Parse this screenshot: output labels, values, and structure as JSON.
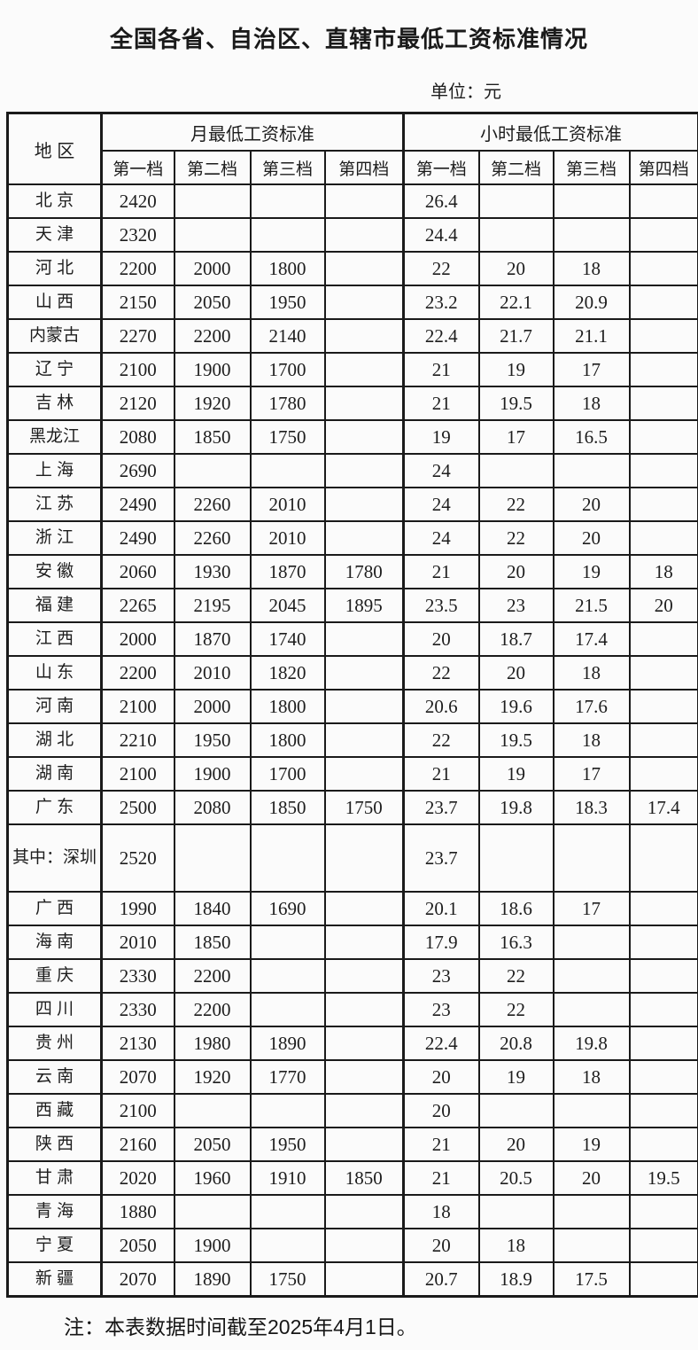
{
  "title": "全国各省、自治区、直辖市最低工资标准情况",
  "unit_label": "单位：元",
  "note": "注：本表数据时间截至2025年4月1日。",
  "table": {
    "region_header": "地 区",
    "month_group_header": "月最低工资标准",
    "hour_group_header": "小时最低工资标准",
    "tier_headers": [
      "第一档",
      "第二档",
      "第三档",
      "第四档"
    ],
    "rows": [
      {
        "region": "北 京",
        "month": [
          "2420",
          "",
          "",
          ""
        ],
        "hour": [
          "26.4",
          "",
          "",
          ""
        ]
      },
      {
        "region": "天 津",
        "month": [
          "2320",
          "",
          "",
          ""
        ],
        "hour": [
          "24.4",
          "",
          "",
          ""
        ]
      },
      {
        "region": "河 北",
        "month": [
          "2200",
          "2000",
          "1800",
          ""
        ],
        "hour": [
          "22",
          "20",
          "18",
          ""
        ]
      },
      {
        "region": "山 西",
        "month": [
          "2150",
          "2050",
          "1950",
          ""
        ],
        "hour": [
          "23.2",
          "22.1",
          "20.9",
          ""
        ]
      },
      {
        "region": "内蒙古",
        "month": [
          "2270",
          "2200",
          "2140",
          ""
        ],
        "hour": [
          "22.4",
          "21.7",
          "21.1",
          ""
        ]
      },
      {
        "region": "辽 宁",
        "month": [
          "2100",
          "1900",
          "1700",
          ""
        ],
        "hour": [
          "21",
          "19",
          "17",
          ""
        ]
      },
      {
        "region": "吉 林",
        "month": [
          "2120",
          "1920",
          "1780",
          ""
        ],
        "hour": [
          "21",
          "19.5",
          "18",
          ""
        ]
      },
      {
        "region": "黑龙江",
        "month": [
          "2080",
          "1850",
          "1750",
          ""
        ],
        "hour": [
          "19",
          "17",
          "16.5",
          ""
        ]
      },
      {
        "region": "上 海",
        "month": [
          "2690",
          "",
          "",
          ""
        ],
        "hour": [
          "24",
          "",
          "",
          ""
        ]
      },
      {
        "region": "江 苏",
        "month": [
          "2490",
          "2260",
          "2010",
          ""
        ],
        "hour": [
          "24",
          "22",
          "20",
          ""
        ]
      },
      {
        "region": "浙 江",
        "month": [
          "2490",
          "2260",
          "2010",
          ""
        ],
        "hour": [
          "24",
          "22",
          "20",
          ""
        ]
      },
      {
        "region": "安 徽",
        "month": [
          "2060",
          "1930",
          "1870",
          "1780"
        ],
        "hour": [
          "21",
          "20",
          "19",
          "18"
        ]
      },
      {
        "region": "福 建",
        "month": [
          "2265",
          "2195",
          "2045",
          "1895"
        ],
        "hour": [
          "23.5",
          "23",
          "21.5",
          "20"
        ]
      },
      {
        "region": "江 西",
        "month": [
          "2000",
          "1870",
          "1740",
          ""
        ],
        "hour": [
          "20",
          "18.7",
          "17.4",
          ""
        ]
      },
      {
        "region": "山 东",
        "month": [
          "2200",
          "2010",
          "1820",
          ""
        ],
        "hour": [
          "22",
          "20",
          "18",
          ""
        ]
      },
      {
        "region": "河 南",
        "month": [
          "2100",
          "2000",
          "1800",
          ""
        ],
        "hour": [
          "20.6",
          "19.6",
          "17.6",
          ""
        ]
      },
      {
        "region": "湖 北",
        "month": [
          "2210",
          "1950",
          "1800",
          ""
        ],
        "hour": [
          "22",
          "19.5",
          "18",
          ""
        ]
      },
      {
        "region": "湖 南",
        "month": [
          "2100",
          "1900",
          "1700",
          ""
        ],
        "hour": [
          "21",
          "19",
          "17",
          ""
        ]
      },
      {
        "region": "广 东",
        "month": [
          "2500",
          "2080",
          "1850",
          "1750"
        ],
        "hour": [
          "23.7",
          "19.8",
          "18.3",
          "17.4"
        ]
      },
      {
        "region": "其中：深圳",
        "month": [
          "2520",
          "",
          "",
          ""
        ],
        "hour": [
          "23.7",
          "",
          "",
          ""
        ]
      },
      {
        "region": "广 西",
        "month": [
          "1990",
          "1840",
          "1690",
          ""
        ],
        "hour": [
          "20.1",
          "18.6",
          "17",
          ""
        ]
      },
      {
        "region": "海 南",
        "month": [
          "2010",
          "1850",
          "",
          ""
        ],
        "hour": [
          "17.9",
          "16.3",
          "",
          ""
        ]
      },
      {
        "region": "重 庆",
        "month": [
          "2330",
          "2200",
          "",
          ""
        ],
        "hour": [
          "23",
          "22",
          "",
          ""
        ]
      },
      {
        "region": "四 川",
        "month": [
          "2330",
          "2200",
          "",
          ""
        ],
        "hour": [
          "23",
          "22",
          "",
          ""
        ]
      },
      {
        "region": "贵 州",
        "month": [
          "2130",
          "1980",
          "1890",
          ""
        ],
        "hour": [
          "22.4",
          "20.8",
          "19.8",
          ""
        ]
      },
      {
        "region": "云 南",
        "month": [
          "2070",
          "1920",
          "1770",
          ""
        ],
        "hour": [
          "20",
          "19",
          "18",
          ""
        ]
      },
      {
        "region": "西 藏",
        "month": [
          "2100",
          "",
          "",
          ""
        ],
        "hour": [
          "20",
          "",
          "",
          ""
        ]
      },
      {
        "region": "陕 西",
        "month": [
          "2160",
          "2050",
          "1950",
          ""
        ],
        "hour": [
          "21",
          "20",
          "19",
          ""
        ]
      },
      {
        "region": "甘 肃",
        "month": [
          "2020",
          "1960",
          "1910",
          "1850"
        ],
        "hour": [
          "21",
          "20.5",
          "20",
          "19.5"
        ]
      },
      {
        "region": "青 海",
        "month": [
          "1880",
          "",
          "",
          ""
        ],
        "hour": [
          "18",
          "",
          "",
          ""
        ]
      },
      {
        "region": "宁 夏",
        "month": [
          "2050",
          "1900",
          "",
          ""
        ],
        "hour": [
          "20",
          "18",
          "",
          ""
        ]
      },
      {
        "region": "新 疆",
        "month": [
          "2070",
          "1890",
          "1750",
          ""
        ],
        "hour": [
          "20.7",
          "18.9",
          "17.5",
          ""
        ]
      }
    ]
  }
}
